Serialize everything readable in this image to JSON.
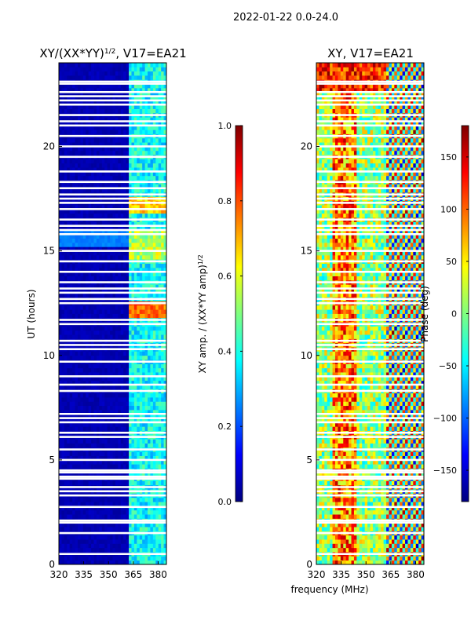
{
  "figure": {
    "suptitle": "2022-01-22 0.0-24.0",
    "xlabel_shared": "frequency (MHz)"
  },
  "colors": {
    "jet": [
      "#00007f",
      "#0000ff",
      "#007fff",
      "#00ffff",
      "#7fff7f",
      "#ffff00",
      "#ff7f00",
      "#ff0000",
      "#7f0000"
    ],
    "gap": "#ffffff"
  },
  "chart_data": [
    {
      "type": "heatmap",
      "title_prefix": "XY/(XX*YY)",
      "title_exp": "1/2",
      "title_suffix": ", V17=EA21",
      "xlabel": "",
      "ylabel": "UT (hours)",
      "xlim": [
        320,
        385
      ],
      "ylim": [
        0,
        24
      ],
      "xticks": [
        320,
        335,
        350,
        365,
        380
      ],
      "yticks": [
        0,
        5,
        10,
        15,
        20
      ],
      "colorbar": {
        "label": "XY amp. / (XX*YY amp)",
        "label_exp": "1/2",
        "range": [
          0.0,
          1.0
        ],
        "ticks": [
          "0.0",
          "0.2",
          "0.4",
          "0.6",
          "0.8",
          "1.0"
        ],
        "tick_values": [
          0.0,
          0.2,
          0.4,
          0.6,
          0.8,
          1.0
        ]
      },
      "pattern": "low amplitude (~0.02) across 320-362 MHz; elevated amplitude (~0.3-0.5) in 362-382 MHz; peaks ~0.8 near 12 h and 17 h; enhanced 15-16 h across band"
    },
    {
      "type": "heatmap",
      "title": "XY, V17=EA21",
      "xlabel": "frequency (MHz)",
      "ylabel": "",
      "xlim": [
        320,
        385
      ],
      "ylim": [
        0,
        24
      ],
      "xticks": [
        320,
        335,
        350,
        365,
        380
      ],
      "yticks": [
        0,
        5,
        10,
        15,
        20
      ],
      "colorbar": {
        "label": "Phase (deg)",
        "range": [
          -180,
          180
        ],
        "ticks": [
          "150",
          "100",
          "50",
          "0",
          "−50",
          "−100",
          "−150"
        ],
        "tick_values": [
          150,
          100,
          50,
          0,
          -50,
          -100,
          -150
        ]
      },
      "pattern": "noisy phase; warm band near 332-342 MHz; coherent phase wraps in 362-382 MHz; mostly 320-362 MHz noise near 0 deg"
    }
  ],
  "gaps_hours": [
    0.5,
    1.5,
    2.0,
    2.1,
    2.75,
    3.3,
    3.5,
    3.7,
    4.1,
    4.2,
    4.4,
    4.5,
    5.0,
    5.5,
    6.1,
    6.3,
    6.8,
    7.0,
    7.2,
    8.3,
    8.6,
    9.0,
    9.7,
    10.3,
    10.5,
    10.7,
    11.5,
    11.7,
    12.5,
    12.7,
    13.0,
    13.2,
    13.5,
    14.0,
    14.5,
    15.0,
    15.8,
    16.0,
    16.2,
    16.5,
    17.0,
    17.3,
    17.5,
    17.7,
    18.0,
    18.3,
    18.8,
    19.5,
    20.0,
    20.5,
    21.0,
    21.2,
    21.5,
    22.0,
    22.2,
    22.4,
    22.6,
    23.0,
    23.1
  ]
}
